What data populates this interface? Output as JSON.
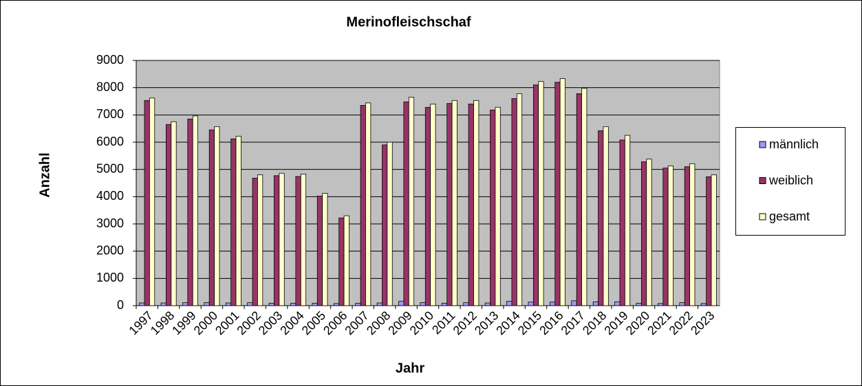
{
  "chart_data": {
    "type": "bar",
    "title": "Merinofleischschaf",
    "x_label": "Jahr",
    "y_label": "Anzahl",
    "categories": [
      "1997",
      "1998",
      "1999",
      "2000",
      "2001",
      "2002",
      "2003",
      "2004",
      "2005",
      "2006",
      "2007",
      "2008",
      "2009",
      "2010",
      "2011",
      "2012",
      "2013",
      "2014",
      "2015",
      "2016",
      "2017",
      "2018",
      "2019",
      "2020",
      "2021",
      "2022",
      "2023"
    ],
    "series": [
      {
        "name": "männlich",
        "color": "#9999ff",
        "values": [
          100,
          100,
          110,
          110,
          100,
          110,
          90,
          90,
          90,
          80,
          90,
          100,
          160,
          110,
          90,
          110,
          100,
          160,
          130,
          130,
          180,
          140,
          140,
          90,
          80,
          110,
          80
        ]
      },
      {
        "name": "weiblich",
        "color": "#993366",
        "values": [
          7530,
          6650,
          6850,
          6450,
          6120,
          4680,
          4770,
          4740,
          4020,
          3220,
          7350,
          5900,
          7480,
          7280,
          7420,
          7400,
          7180,
          7600,
          8100,
          8200,
          7780,
          6420,
          6080,
          5280,
          5050,
          5100,
          4730
        ]
      },
      {
        "name": "gesamt",
        "color": "#ffffcc",
        "values": [
          7620,
          6750,
          6960,
          6570,
          6220,
          4800,
          4860,
          4830,
          4120,
          3300,
          7440,
          6000,
          7650,
          7400,
          7530,
          7530,
          7280,
          7780,
          8230,
          8330,
          7980,
          6570,
          6250,
          5380,
          5130,
          5210,
          4800
        ]
      }
    ],
    "ylim": [
      0,
      9000
    ],
    "yticks": [
      0,
      1000,
      2000,
      3000,
      4000,
      5000,
      6000,
      7000,
      8000,
      9000
    ],
    "grid": true,
    "legend": "right"
  }
}
